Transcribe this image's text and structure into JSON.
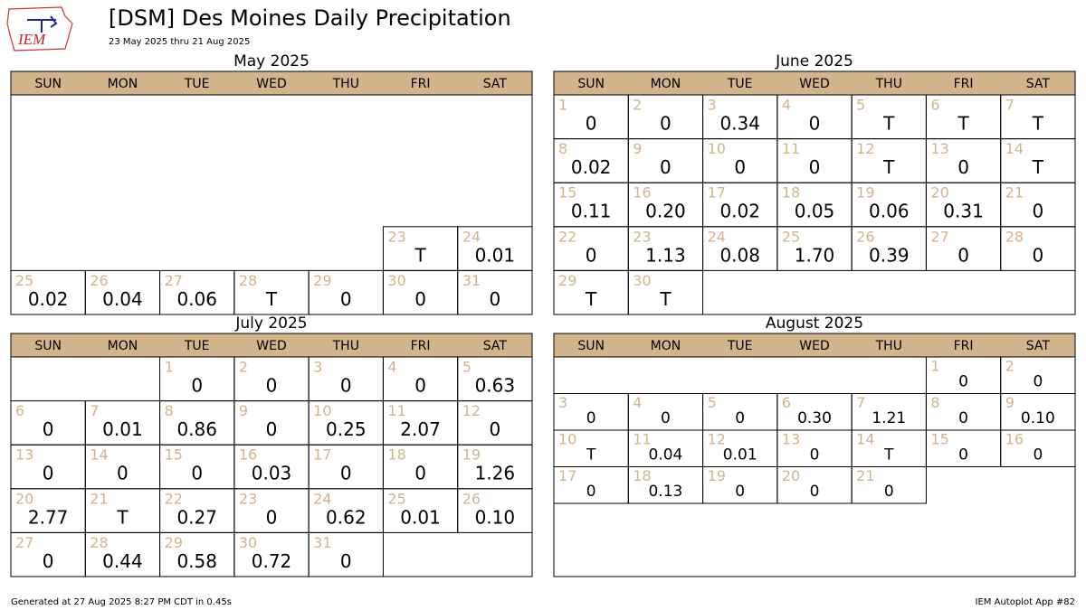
{
  "header": {
    "logo": "IEM",
    "title": "[DSM] Des Moines Daily Precipitation",
    "subtitle": "23 May 2025 thru 21 Aug 2025"
  },
  "weekdays": [
    "SUN",
    "MON",
    "TUE",
    "WED",
    "THU",
    "FRI",
    "SAT"
  ],
  "months": [
    {
      "title": "May 2025",
      "days": [
        {
          "day": 23,
          "value": "T"
        },
        {
          "day": 24,
          "value": "0.01"
        },
        {
          "day": 25,
          "value": "0.02"
        },
        {
          "day": 26,
          "value": "0.04"
        },
        {
          "day": 27,
          "value": "0.06"
        },
        {
          "day": 28,
          "value": "T"
        },
        {
          "day": 29,
          "value": "0"
        },
        {
          "day": 30,
          "value": "0"
        },
        {
          "day": 31,
          "value": "0"
        }
      ]
    },
    {
      "title": "June 2025",
      "days": [
        {
          "day": 1,
          "value": "0"
        },
        {
          "day": 2,
          "value": "0"
        },
        {
          "day": 3,
          "value": "0.34"
        },
        {
          "day": 4,
          "value": "0"
        },
        {
          "day": 5,
          "value": "T"
        },
        {
          "day": 6,
          "value": "T"
        },
        {
          "day": 7,
          "value": "T"
        },
        {
          "day": 8,
          "value": "0.02"
        },
        {
          "day": 9,
          "value": "0"
        },
        {
          "day": 10,
          "value": "0"
        },
        {
          "day": 11,
          "value": "0"
        },
        {
          "day": 12,
          "value": "T"
        },
        {
          "day": 13,
          "value": "0"
        },
        {
          "day": 14,
          "value": "T"
        },
        {
          "day": 15,
          "value": "0.11"
        },
        {
          "day": 16,
          "value": "0.20"
        },
        {
          "day": 17,
          "value": "0.02"
        },
        {
          "day": 18,
          "value": "0.05"
        },
        {
          "day": 19,
          "value": "0.06"
        },
        {
          "day": 20,
          "value": "0.31"
        },
        {
          "day": 21,
          "value": "0"
        },
        {
          "day": 22,
          "value": "0"
        },
        {
          "day": 23,
          "value": "1.13"
        },
        {
          "day": 24,
          "value": "0.08"
        },
        {
          "day": 25,
          "value": "1.70"
        },
        {
          "day": 26,
          "value": "0.39"
        },
        {
          "day": 27,
          "value": "0"
        },
        {
          "day": 28,
          "value": "0"
        },
        {
          "day": 29,
          "value": "T"
        },
        {
          "day": 30,
          "value": "T"
        }
      ]
    },
    {
      "title": "July 2025",
      "days": [
        {
          "day": 1,
          "value": "0"
        },
        {
          "day": 2,
          "value": "0"
        },
        {
          "day": 3,
          "value": "0"
        },
        {
          "day": 4,
          "value": "0"
        },
        {
          "day": 5,
          "value": "0.63"
        },
        {
          "day": 6,
          "value": "0"
        },
        {
          "day": 7,
          "value": "0.01"
        },
        {
          "day": 8,
          "value": "0.86"
        },
        {
          "day": 9,
          "value": "0"
        },
        {
          "day": 10,
          "value": "0.25"
        },
        {
          "day": 11,
          "value": "2.07"
        },
        {
          "day": 12,
          "value": "0"
        },
        {
          "day": 13,
          "value": "0"
        },
        {
          "day": 14,
          "value": "0"
        },
        {
          "day": 15,
          "value": "0"
        },
        {
          "day": 16,
          "value": "0.03"
        },
        {
          "day": 17,
          "value": "0"
        },
        {
          "day": 18,
          "value": "0"
        },
        {
          "day": 19,
          "value": "1.26"
        },
        {
          "day": 20,
          "value": "2.77"
        },
        {
          "day": 21,
          "value": "T"
        },
        {
          "day": 22,
          "value": "0.27"
        },
        {
          "day": 23,
          "value": "0"
        },
        {
          "day": 24,
          "value": "0.62"
        },
        {
          "day": 25,
          "value": "0.01"
        },
        {
          "day": 26,
          "value": "0.10"
        },
        {
          "day": 27,
          "value": "0"
        },
        {
          "day": 28,
          "value": "0.44"
        },
        {
          "day": 29,
          "value": "0.58"
        },
        {
          "day": 30,
          "value": "0.72"
        },
        {
          "day": 31,
          "value": "0"
        }
      ]
    },
    {
      "title": "August 2025",
      "days": [
        {
          "day": 1,
          "value": "0"
        },
        {
          "day": 2,
          "value": "0"
        },
        {
          "day": 3,
          "value": "0"
        },
        {
          "day": 4,
          "value": "0"
        },
        {
          "day": 5,
          "value": "0"
        },
        {
          "day": 6,
          "value": "0.30"
        },
        {
          "day": 7,
          "value": "1.21"
        },
        {
          "day": 8,
          "value": "0"
        },
        {
          "day": 9,
          "value": "0.10"
        },
        {
          "day": 10,
          "value": "T"
        },
        {
          "day": 11,
          "value": "0.04"
        },
        {
          "day": 12,
          "value": "0.01"
        },
        {
          "day": 13,
          "value": "0"
        },
        {
          "day": 14,
          "value": "T"
        },
        {
          "day": 15,
          "value": "0"
        },
        {
          "day": 16,
          "value": "0"
        },
        {
          "day": 17,
          "value": "0"
        },
        {
          "day": 18,
          "value": "0.13"
        },
        {
          "day": 19,
          "value": "0"
        },
        {
          "day": 20,
          "value": "0"
        },
        {
          "day": 21,
          "value": "0"
        }
      ]
    }
  ],
  "footer": {
    "left": "Generated at 27 Aug 2025 8:27 PM CDT in 0.45s",
    "right": "IEM Autoplot App #82"
  }
}
